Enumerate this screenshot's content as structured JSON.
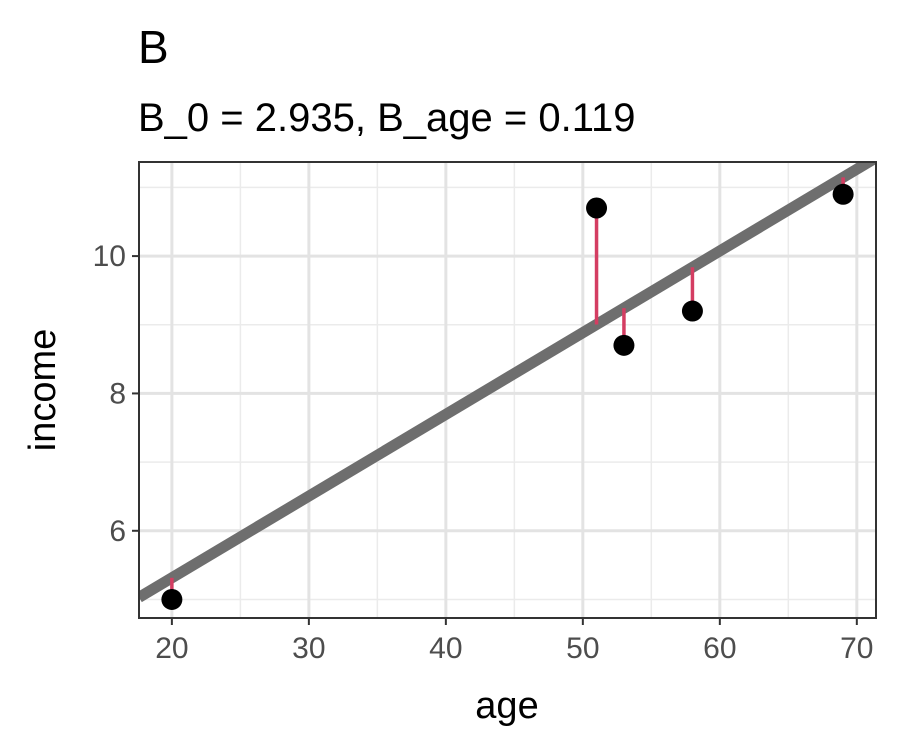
{
  "chart_data": {
    "type": "scatter",
    "title": "B",
    "subtitle": "B_0 = 2.935, B_age = 0.119",
    "xlabel": "age",
    "ylabel": "income",
    "xlim": [
      17.6,
      71.4
    ],
    "ylim": [
      4.73,
      11.37
    ],
    "x_ticks": [
      20,
      30,
      40,
      50,
      60,
      70
    ],
    "y_ticks": [
      6,
      8,
      10
    ],
    "x_tick_labels": [
      "20",
      "30",
      "40",
      "50",
      "60",
      "70"
    ],
    "y_tick_labels": [
      "6",
      "8",
      "10"
    ],
    "grid": true,
    "legend": "none",
    "fit_line": {
      "intercept": 2.935,
      "slope": 0.119,
      "color": "#6e6e6e"
    },
    "residual_color": "#d43d62",
    "point_color": "#000000",
    "points": [
      {
        "x": 20,
        "y": 5.0
      },
      {
        "x": 51,
        "y": 10.7
      },
      {
        "x": 53,
        "y": 8.7
      },
      {
        "x": 58,
        "y": 9.2
      },
      {
        "x": 69,
        "y": 10.9
      }
    ]
  }
}
